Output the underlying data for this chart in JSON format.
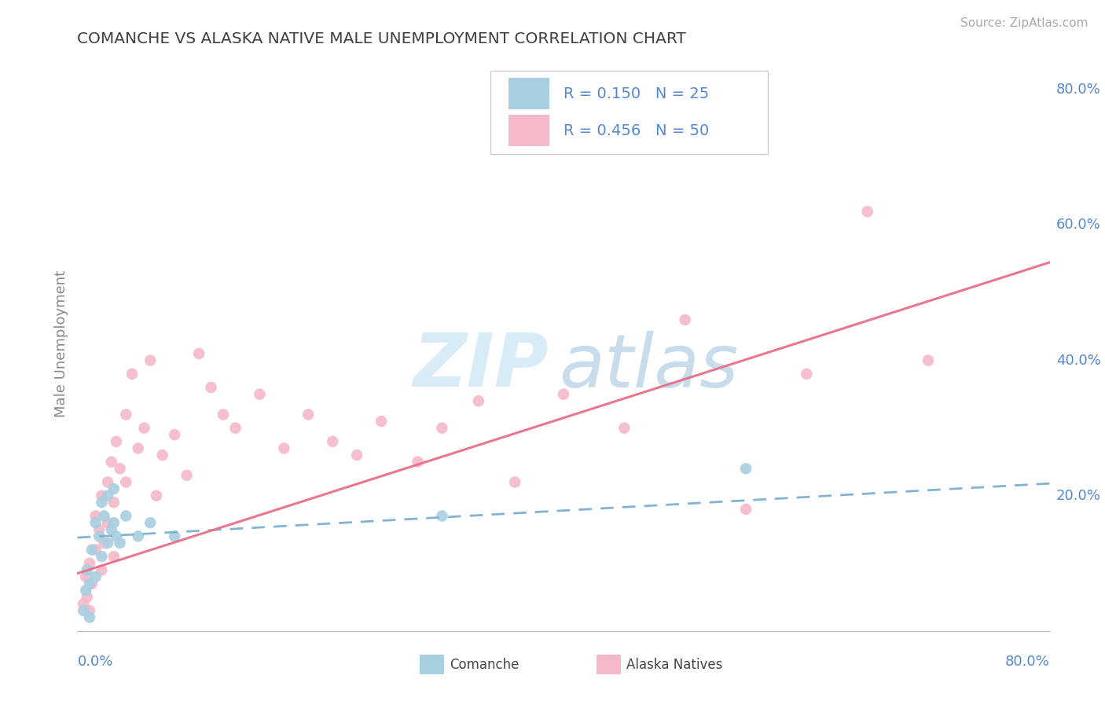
{
  "title": "COMANCHE VS ALASKA NATIVE MALE UNEMPLOYMENT CORRELATION CHART",
  "source": "Source: ZipAtlas.com",
  "ylabel": "Male Unemployment",
  "right_ytick_labels": [
    "80.0%",
    "60.0%",
    "40.0%",
    "20.0%"
  ],
  "right_ytick_positions": [
    0.8,
    0.6,
    0.4,
    0.2
  ],
  "legend_blue_R": "R = 0.150",
  "legend_blue_N": "N = 25",
  "legend_pink_R": "R = 0.456",
  "legend_pink_N": "N = 50",
  "blue_color": "#a8cfe0",
  "pink_color": "#f4b8c8",
  "blue_line_color": "#7ab0d0",
  "pink_line_color": "#e8708a",
  "grid_color": "#cccccc",
  "title_color": "#404040",
  "axis_label_color": "#5588cc",
  "watermark_zip_color": "#d8ecf8",
  "watermark_atlas_color": "#c8dcec",
  "xlim": [
    0.0,
    0.8
  ],
  "ylim": [
    0.0,
    0.85
  ],
  "comanche_x": [
    0.005,
    0.007,
    0.008,
    0.01,
    0.01,
    0.012,
    0.015,
    0.015,
    0.018,
    0.02,
    0.02,
    0.022,
    0.025,
    0.025,
    0.028,
    0.03,
    0.03,
    0.032,
    0.035,
    0.04,
    0.05,
    0.06,
    0.08,
    0.3,
    0.55
  ],
  "comanche_y": [
    0.03,
    0.06,
    0.09,
    0.02,
    0.07,
    0.12,
    0.08,
    0.16,
    0.14,
    0.11,
    0.19,
    0.17,
    0.13,
    0.2,
    0.15,
    0.16,
    0.21,
    0.14,
    0.13,
    0.17,
    0.14,
    0.16,
    0.14,
    0.17,
    0.24
  ],
  "alaska_x": [
    0.005,
    0.007,
    0.008,
    0.01,
    0.01,
    0.012,
    0.015,
    0.015,
    0.018,
    0.02,
    0.02,
    0.022,
    0.025,
    0.025,
    0.028,
    0.03,
    0.03,
    0.032,
    0.035,
    0.04,
    0.04,
    0.045,
    0.05,
    0.055,
    0.06,
    0.065,
    0.07,
    0.08,
    0.09,
    0.1,
    0.11,
    0.12,
    0.13,
    0.15,
    0.17,
    0.19,
    0.21,
    0.23,
    0.25,
    0.28,
    0.3,
    0.33,
    0.36,
    0.4,
    0.45,
    0.5,
    0.55,
    0.6,
    0.65,
    0.7
  ],
  "alaska_y": [
    0.04,
    0.08,
    0.05,
    0.03,
    0.1,
    0.07,
    0.12,
    0.17,
    0.15,
    0.09,
    0.2,
    0.13,
    0.22,
    0.16,
    0.25,
    0.11,
    0.19,
    0.28,
    0.24,
    0.22,
    0.32,
    0.38,
    0.27,
    0.3,
    0.4,
    0.2,
    0.26,
    0.29,
    0.23,
    0.41,
    0.36,
    0.32,
    0.3,
    0.35,
    0.27,
    0.32,
    0.28,
    0.26,
    0.31,
    0.25,
    0.3,
    0.34,
    0.22,
    0.35,
    0.3,
    0.46,
    0.18,
    0.38,
    0.62,
    0.4
  ],
  "blue_trend_y0": 0.138,
  "blue_trend_y1": 0.218,
  "pink_trend_y0": 0.085,
  "pink_trend_y1": 0.545
}
